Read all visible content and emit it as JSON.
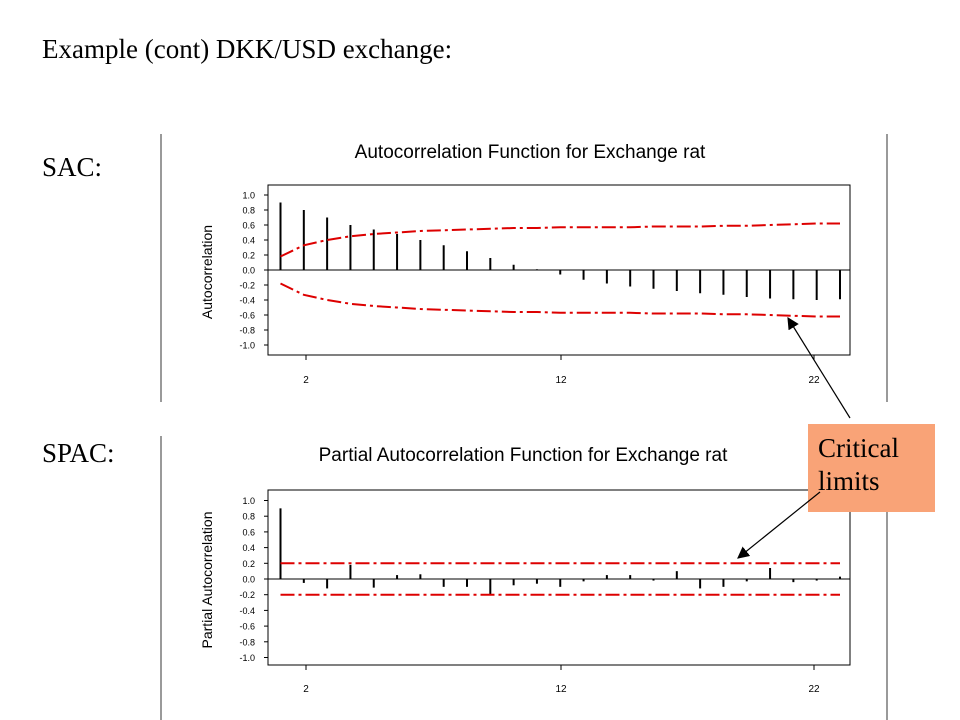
{
  "slide": {
    "title": "Example (cont) DKK/USD exchange:",
    "sac_label": "SAC:",
    "spac_label": "SPAC:",
    "callout": [
      "Critical",
      "limits"
    ]
  },
  "colors": {
    "bars": "#000000",
    "limits": "#dd0000",
    "callout_bg": "#f9a377"
  },
  "chart_data": [
    {
      "type": "bar",
      "title": "Autocorrelation Function for Exchange rat",
      "ylabel": "Autocorrelation",
      "xlabel": "",
      "ylim": [
        -1.0,
        1.0
      ],
      "yticks": [
        "1.0",
        "0.8",
        "0.6",
        "0.4",
        "0.2",
        "0.0",
        "-0.2",
        "-0.4",
        "-0.6",
        "-0.8",
        "-1.0"
      ],
      "xticks": [
        "2",
        "12",
        "22"
      ],
      "x": [
        1,
        2,
        3,
        4,
        5,
        6,
        7,
        8,
        9,
        10,
        11,
        12,
        13,
        14,
        15,
        16,
        17,
        18,
        19,
        20,
        21,
        22,
        23,
        24,
        25
      ],
      "values": [
        0.9,
        0.8,
        0.7,
        0.6,
        0.54,
        0.48,
        0.4,
        0.33,
        0.25,
        0.16,
        0.07,
        0.01,
        -0.06,
        -0.13,
        -0.18,
        -0.22,
        -0.25,
        -0.28,
        -0.31,
        -0.33,
        -0.36,
        -0.38,
        -0.39,
        -0.4,
        -0.39
      ],
      "limits": {
        "upper": [
          0.18,
          0.33,
          0.4,
          0.45,
          0.48,
          0.5,
          0.52,
          0.53,
          0.54,
          0.55,
          0.56,
          0.56,
          0.57,
          0.57,
          0.57,
          0.57,
          0.58,
          0.58,
          0.58,
          0.59,
          0.59,
          0.6,
          0.61,
          0.62,
          0.62
        ],
        "lower": [
          -0.18,
          -0.33,
          -0.4,
          -0.45,
          -0.48,
          -0.5,
          -0.52,
          -0.53,
          -0.54,
          -0.55,
          -0.56,
          -0.56,
          -0.57,
          -0.57,
          -0.57,
          -0.57,
          -0.58,
          -0.58,
          -0.58,
          -0.59,
          -0.59,
          -0.6,
          -0.61,
          -0.62,
          -0.62
        ]
      }
    },
    {
      "type": "bar",
      "title": "Partial Autocorrelation Function for Exchange rat",
      "ylabel": "Partial Autocorrelation",
      "xlabel": "",
      "ylim": [
        -1.0,
        1.0
      ],
      "yticks": [
        "1.0",
        "0.8",
        "0.6",
        "0.4",
        "0.2",
        "0.0",
        "-0.2",
        "-0.4",
        "-0.6",
        "-0.8",
        "-1.0"
      ],
      "xticks": [
        "2",
        "12",
        "22"
      ],
      "x": [
        1,
        2,
        3,
        4,
        5,
        6,
        7,
        8,
        9,
        10,
        11,
        12,
        13,
        14,
        15,
        16,
        17,
        18,
        19,
        20,
        21,
        22,
        23,
        24,
        25
      ],
      "values": [
        0.9,
        -0.05,
        -0.12,
        0.18,
        -0.11,
        0.05,
        0.06,
        -0.1,
        -0.1,
        -0.2,
        -0.08,
        -0.06,
        -0.1,
        -0.03,
        0.05,
        0.05,
        -0.02,
        0.1,
        -0.12,
        -0.1,
        -0.03,
        0.14,
        -0.04,
        -0.02,
        0.03
      ],
      "limits": {
        "upper": 0.2,
        "lower": -0.2
      }
    }
  ]
}
